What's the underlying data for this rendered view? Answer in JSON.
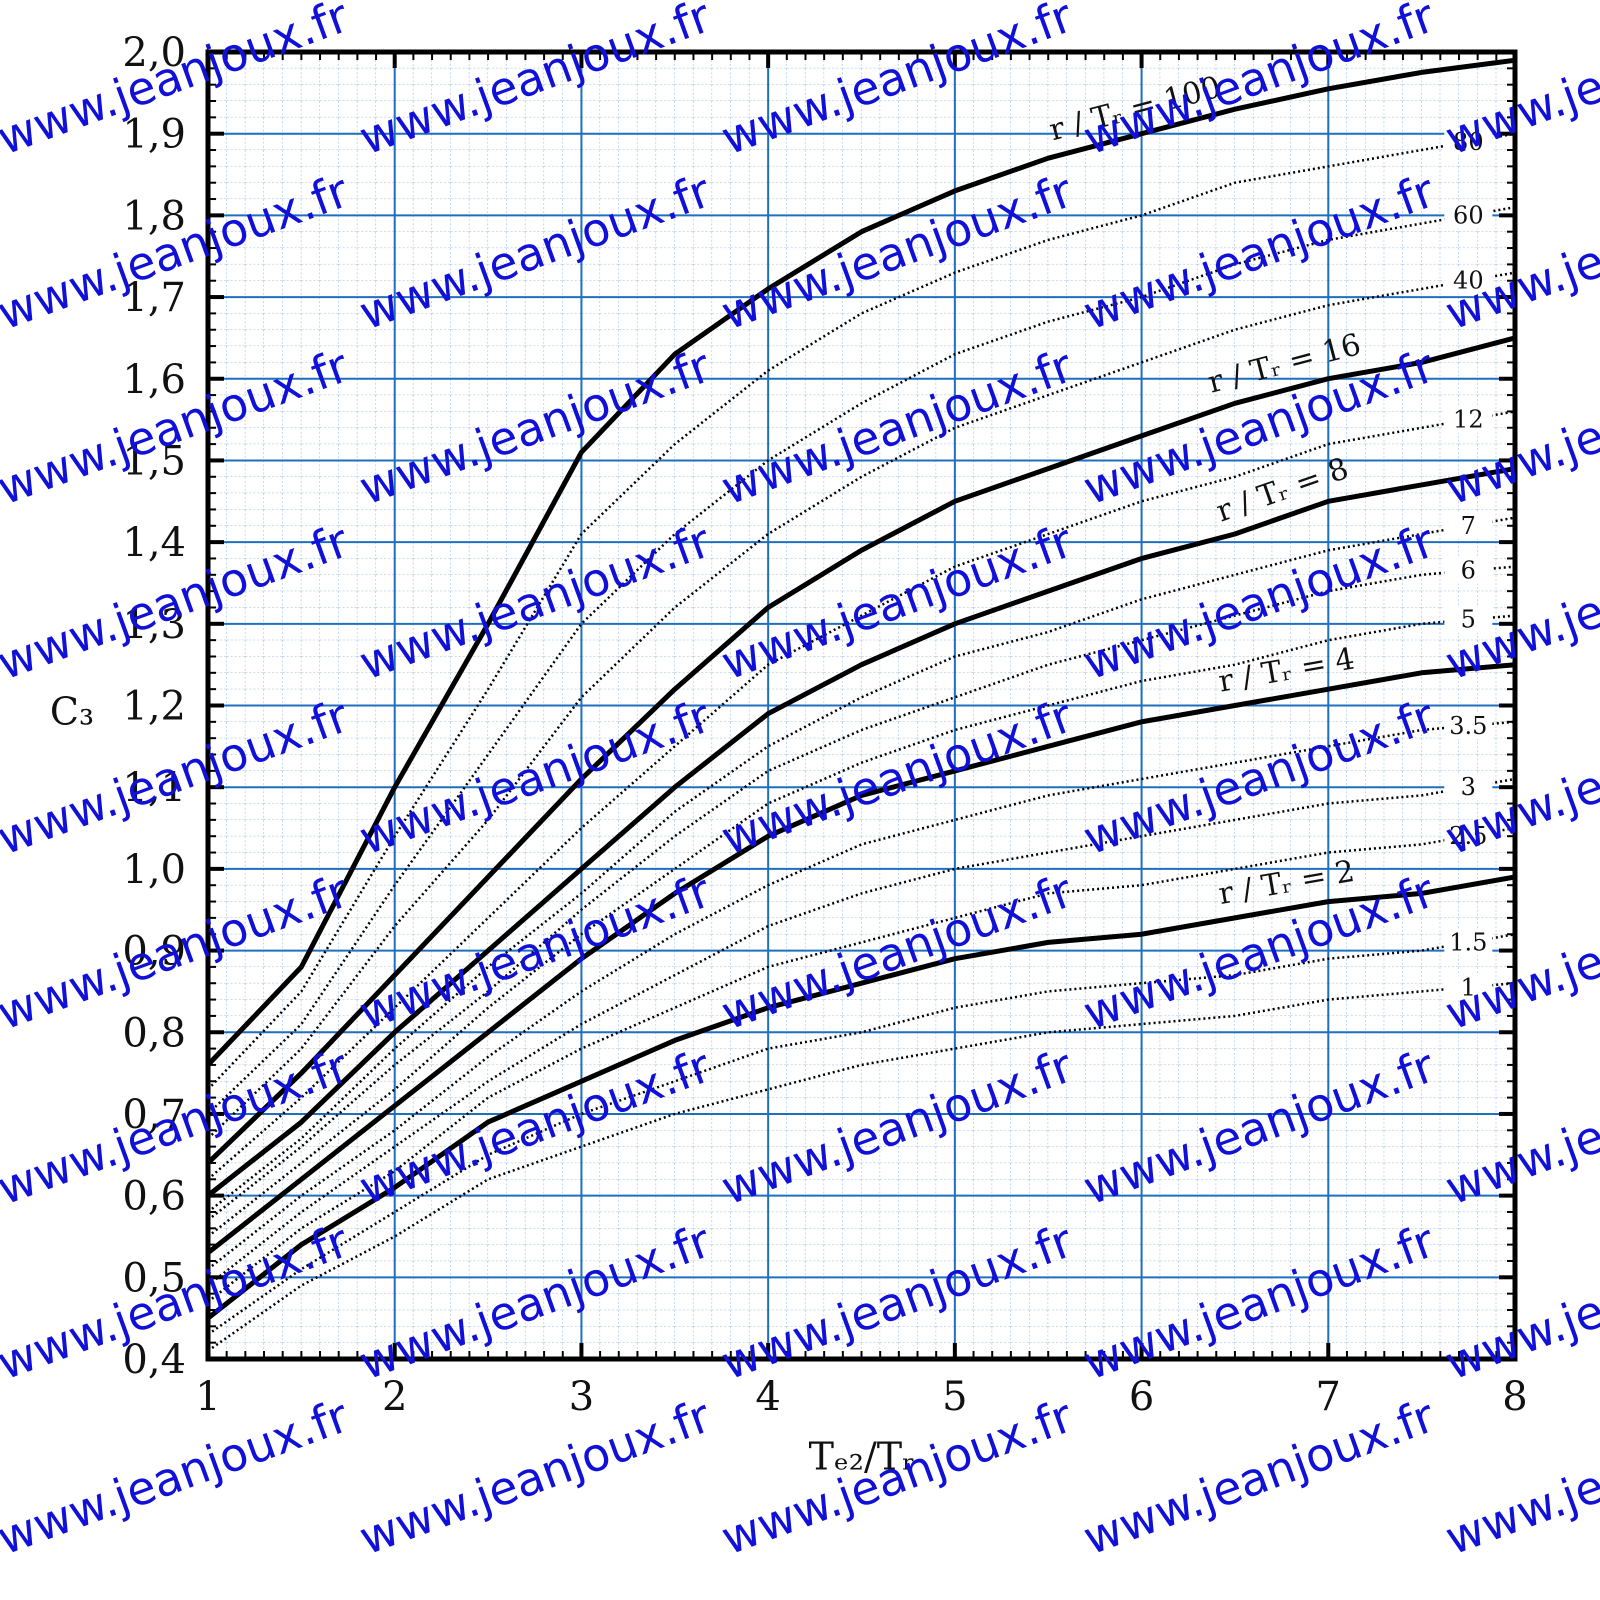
{
  "watermark": "www.jeanjoux.fr",
  "chart_data": {
    "type": "line",
    "xlabel": "Tₑ₂/Tᵣ",
    "ylabel": "C₃",
    "x": [
      1,
      1.5,
      2,
      2.5,
      3,
      3.5,
      4,
      4.5,
      5,
      5.5,
      6,
      6.5,
      7,
      7.5,
      8
    ],
    "xlim": [
      1,
      8
    ],
    "ylim": [
      0.4,
      2.0
    ],
    "xticks": [
      1,
      2,
      3,
      4,
      5,
      6,
      7,
      8
    ],
    "yticks": [
      {
        "value": 0.4,
        "label": "0,4"
      },
      {
        "value": 0.5,
        "label": "0,5"
      },
      {
        "value": 0.6,
        "label": "0,6"
      },
      {
        "value": 0.7,
        "label": "0,7"
      },
      {
        "value": 0.8,
        "label": "0,8"
      },
      {
        "value": 0.9,
        "label": "0,9"
      },
      {
        "value": 1.0,
        "label": "1,0"
      },
      {
        "value": 1.1,
        "label": "1,1"
      },
      {
        "value": 1.2,
        "label": "1,2"
      },
      {
        "value": 1.3,
        "label": "1,3"
      },
      {
        "value": 1.4,
        "label": "1,4"
      },
      {
        "value": 1.5,
        "label": "1,5"
      },
      {
        "value": 1.6,
        "label": "1,6"
      },
      {
        "value": 1.7,
        "label": "1,7"
      },
      {
        "value": 1.8,
        "label": "1,8"
      },
      {
        "value": 1.9,
        "label": "1,9"
      },
      {
        "value": 2.0,
        "label": "2,0"
      }
    ],
    "grid": true,
    "grid_color": "#1f6fc0",
    "series": [
      {
        "name": "r / Tᵣ = 100",
        "color": "#000000",
        "dashed": false,
        "values": [
          0.76,
          0.88,
          1.1,
          1.3,
          1.51,
          1.63,
          1.71,
          1.78,
          1.83,
          1.87,
          1.9,
          1.93,
          1.955,
          1.975,
          1.99
        ]
      },
      {
        "name": "80",
        "color": "#000000",
        "dashed": true,
        "values": [
          0.73,
          0.85,
          1.04,
          1.22,
          1.41,
          1.52,
          1.61,
          1.68,
          1.73,
          1.77,
          1.8,
          1.84,
          1.86,
          1.88,
          1.9
        ]
      },
      {
        "name": "60",
        "color": "#000000",
        "dashed": true,
        "values": [
          0.7,
          0.81,
          0.98,
          1.14,
          1.3,
          1.41,
          1.5,
          1.57,
          1.63,
          1.67,
          1.7,
          1.74,
          1.77,
          1.79,
          1.81
        ]
      },
      {
        "name": "40",
        "color": "#000000",
        "dashed": true,
        "values": [
          0.67,
          0.78,
          0.93,
          1.06,
          1.21,
          1.32,
          1.41,
          1.48,
          1.54,
          1.58,
          1.62,
          1.66,
          1.69,
          1.71,
          1.73
        ]
      },
      {
        "name": "r / Tᵣ = 16",
        "color": "#000000",
        "dashed": false,
        "values": [
          0.64,
          0.75,
          0.87,
          0.99,
          1.11,
          1.22,
          1.32,
          1.39,
          1.45,
          1.49,
          1.53,
          1.57,
          1.6,
          1.62,
          1.65
        ]
      },
      {
        "name": "12",
        "color": "#000000",
        "dashed": true,
        "values": [
          0.62,
          0.72,
          0.83,
          0.94,
          1.05,
          1.15,
          1.25,
          1.31,
          1.37,
          1.41,
          1.45,
          1.48,
          1.52,
          1.54,
          1.56
        ]
      },
      {
        "name": "r / Tᵣ = 8",
        "color": "#000000",
        "dashed": false,
        "values": [
          0.6,
          0.69,
          0.8,
          0.9,
          1.0,
          1.1,
          1.19,
          1.25,
          1.3,
          1.34,
          1.38,
          1.41,
          1.45,
          1.47,
          1.49
        ]
      },
      {
        "name": "7",
        "color": "#000000",
        "dashed": true,
        "values": [
          0.58,
          0.67,
          0.78,
          0.88,
          0.97,
          1.07,
          1.15,
          1.21,
          1.26,
          1.29,
          1.33,
          1.36,
          1.39,
          1.41,
          1.43
        ]
      },
      {
        "name": "6",
        "color": "#000000",
        "dashed": true,
        "values": [
          0.57,
          0.66,
          0.76,
          0.85,
          0.95,
          1.04,
          1.12,
          1.17,
          1.21,
          1.25,
          1.28,
          1.31,
          1.34,
          1.36,
          1.37
        ]
      },
      {
        "name": "5",
        "color": "#000000",
        "dashed": true,
        "values": [
          0.55,
          0.64,
          0.73,
          0.83,
          0.92,
          1.0,
          1.08,
          1.13,
          1.17,
          1.2,
          1.23,
          1.25,
          1.28,
          1.3,
          1.31
        ]
      },
      {
        "name": "r / Tᵣ = 4",
        "color": "#000000",
        "dashed": false,
        "values": [
          0.53,
          0.62,
          0.71,
          0.8,
          0.89,
          0.97,
          1.04,
          1.09,
          1.12,
          1.15,
          1.18,
          1.2,
          1.22,
          1.24,
          1.25
        ]
      },
      {
        "name": "3.5",
        "color": "#000000",
        "dashed": true,
        "values": [
          0.51,
          0.6,
          0.68,
          0.77,
          0.85,
          0.92,
          0.98,
          1.03,
          1.06,
          1.09,
          1.11,
          1.13,
          1.15,
          1.17,
          1.18
        ]
      },
      {
        "name": "3",
        "color": "#000000",
        "dashed": true,
        "values": [
          0.49,
          0.58,
          0.66,
          0.74,
          0.81,
          0.87,
          0.93,
          0.97,
          1.0,
          1.02,
          1.04,
          1.06,
          1.08,
          1.09,
          1.11
        ]
      },
      {
        "name": "2.5",
        "color": "#000000",
        "dashed": true,
        "values": [
          0.47,
          0.56,
          0.63,
          0.72,
          0.78,
          0.83,
          0.88,
          0.91,
          0.94,
          0.97,
          0.98,
          1.0,
          1.02,
          1.03,
          1.05
        ]
      },
      {
        "name": "r / Tᵣ = 2",
        "color": "#000000",
        "dashed": false,
        "values": [
          0.45,
          0.54,
          0.61,
          0.69,
          0.74,
          0.79,
          0.83,
          0.86,
          0.89,
          0.91,
          0.92,
          0.94,
          0.96,
          0.97,
          0.99
        ]
      },
      {
        "name": "1.5",
        "color": "#000000",
        "dashed": true,
        "values": [
          0.43,
          0.51,
          0.58,
          0.65,
          0.7,
          0.74,
          0.78,
          0.8,
          0.83,
          0.85,
          0.86,
          0.87,
          0.89,
          0.9,
          0.92
        ]
      },
      {
        "name": "1",
        "color": "#000000",
        "dashed": true,
        "values": [
          0.41,
          0.49,
          0.55,
          0.62,
          0.66,
          0.7,
          0.73,
          0.76,
          0.78,
          0.8,
          0.81,
          0.82,
          0.84,
          0.85,
          0.86
        ]
      }
    ]
  }
}
